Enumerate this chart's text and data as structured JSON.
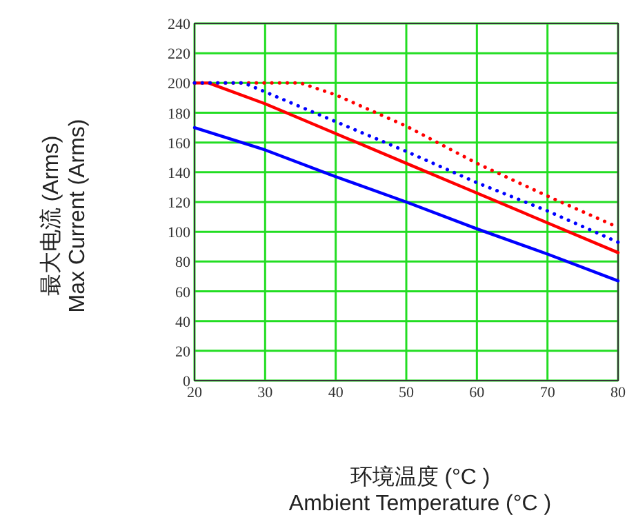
{
  "chart_data": {
    "type": "line",
    "xlabel": "环境温度 (°C )\nAmbient Temperature (°C )",
    "ylabel": "最大电流 (Arms)\nMax Current (Arms)",
    "xlim": [
      20,
      80
    ],
    "xticks": [
      20,
      30,
      40,
      50,
      60,
      70,
      80
    ],
    "ylim": [
      0,
      240
    ],
    "yticks": [
      0,
      20,
      40,
      60,
      80,
      100,
      120,
      140,
      160,
      180,
      200,
      220,
      240
    ],
    "grid": true,
    "marker": "none",
    "series": [
      {
        "color": "#ff0000",
        "line_style": "solid",
        "x": [
          20,
          22,
          30,
          40,
          50,
          60,
          70,
          80
        ],
        "values": [
          200,
          200,
          186,
          166,
          146,
          126,
          106,
          86
        ]
      },
      {
        "color": "#0000ff",
        "line_style": "solid",
        "x": [
          20,
          30,
          40,
          50,
          60,
          70,
          80
        ],
        "values": [
          170,
          155,
          137,
          120,
          102,
          85,
          67
        ]
      },
      {
        "color": "#ff0000",
        "line_style": "dotted",
        "x": [
          20,
          35,
          40,
          50,
          60,
          70,
          80
        ],
        "values": [
          200,
          200,
          192,
          171,
          146,
          124,
          103
        ]
      },
      {
        "color": "#0000ff",
        "line_style": "dotted",
        "x": [
          20,
          27,
          30,
          40,
          50,
          60,
          70,
          80
        ],
        "values": [
          200,
          200,
          194,
          174,
          154,
          133,
          114,
          93
        ]
      }
    ]
  }
}
